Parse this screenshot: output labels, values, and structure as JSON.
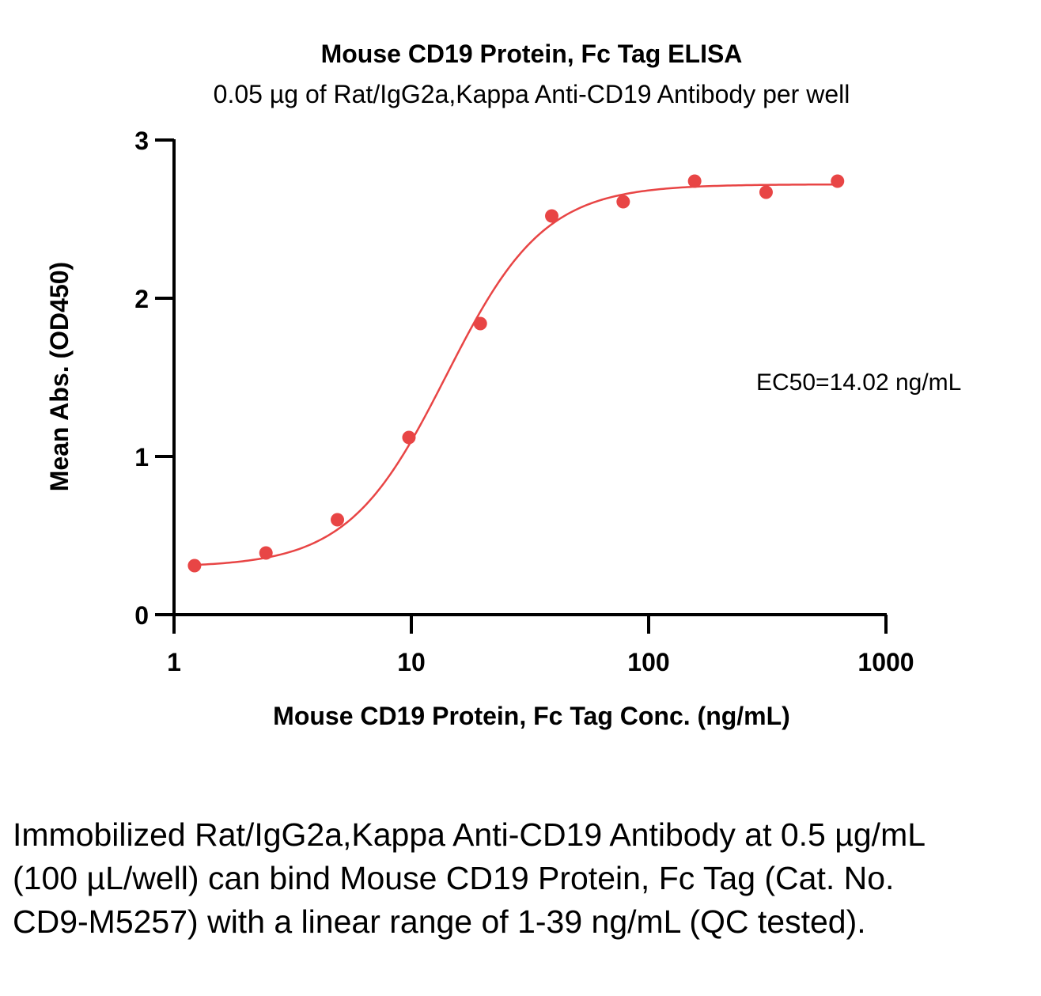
{
  "chart_data": {
    "type": "scatter",
    "title": "Mouse CD19 Protein, Fc Tag ELISA",
    "subtitle": "0.05 µg of Rat/IgG2a,Kappa Anti-CD19 Antibody per well",
    "xlabel": "Mouse CD19 Protein, Fc Tag Conc. (ng/mL)",
    "ylabel": "Mean Abs. (OD450)",
    "xscale": "log",
    "xlim": [
      1,
      1000
    ],
    "ylim": [
      0,
      3
    ],
    "xticks": [
      "1",
      "10",
      "100",
      "1000"
    ],
    "yticks": [
      "0",
      "1",
      "2",
      "3"
    ],
    "grid": false,
    "annotation": "EC50=14.02 ng/mL",
    "color": "#e84545",
    "series": [
      {
        "x": [
          1.22,
          2.44,
          4.88,
          9.77,
          19.53,
          39.06,
          78.13,
          156.25,
          312.5,
          625
        ],
        "y": [
          0.31,
          0.39,
          0.6,
          1.12,
          1.84,
          2.52,
          2.61,
          2.74,
          2.67,
          2.74
        ]
      }
    ],
    "fit": {
      "bottom": 0.3,
      "top": 2.72,
      "ec50": 14.02,
      "hill": 2.1
    }
  },
  "caption": "Immobilized Rat/IgG2a,Kappa Anti-CD19 Antibody at 0.5 µg/mL (100 µL/well) can bind Mouse CD19 Protein, Fc Tag (Cat. No. CD9-M5257) with a linear range of 1-39 ng/mL (QC tested)."
}
